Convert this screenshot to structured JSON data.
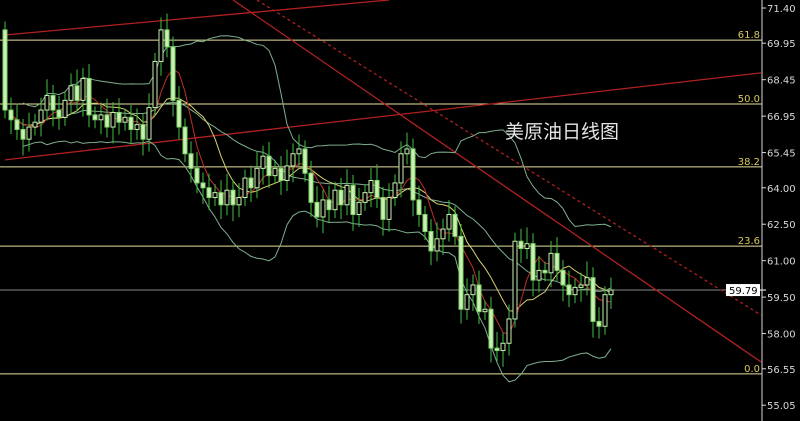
{
  "chart_data": {
    "type": "candlestick",
    "title": "美原油日线图",
    "y_ticks": [
      "71.40",
      "69.95",
      "68.45",
      "66.95",
      "65.45",
      "64.00",
      "62.50",
      "61.00",
      "59.50",
      "58.00",
      "56.55",
      "55.05"
    ],
    "ylim": [
      54.4,
      71.73
    ],
    "grid": false,
    "last_price": "59.79",
    "open": [
      70.5,
      67.2,
      66.8,
      66.4,
      66.0,
      66.5,
      66.7,
      67.2,
      67.8,
      67.2,
      66.9,
      67.6,
      68.2,
      67.6,
      68.5,
      67.0,
      66.8,
      67.0,
      66.5,
      67.1,
      66.7,
      66.9,
      66.4,
      66.6,
      66.0,
      67.3,
      69.2,
      70.5,
      69.8,
      67.6,
      66.5,
      65.4,
      64.8,
      64.2,
      64.0,
      63.6,
      63.8,
      63.3,
      63.9,
      63.3,
      63.6,
      64.4,
      64.0,
      64.8,
      65.3,
      64.5,
      64.8,
      64.3,
      64.9,
      65.4,
      65.6,
      64.6,
      63.4,
      62.8,
      63.5,
      63.1,
      63.9,
      63.3,
      64.1,
      62.9,
      63.4,
      63.8,
      64.3,
      63.6,
      62.7,
      63.6,
      64.2,
      65.4,
      65.6,
      63.5,
      62.9,
      62.2,
      61.4,
      61.9,
      62.3,
      62.9,
      62.0,
      59.0,
      59.6,
      60.0,
      58.9,
      59.0,
      57.4,
      57.3,
      57.6,
      58.6,
      61.8,
      61.5,
      61.7,
      60.2,
      60.6,
      60.5,
      61.3,
      60.6,
      60.0,
      59.6,
      59.9,
      60.0,
      60.3,
      58.5,
      58.3,
      59.6
    ],
    "close": [
      67.2,
      66.8,
      66.4,
      66.0,
      66.5,
      66.7,
      67.2,
      67.8,
      67.2,
      66.9,
      67.6,
      68.2,
      67.6,
      68.5,
      67.0,
      66.8,
      67.0,
      66.5,
      67.1,
      66.7,
      66.9,
      66.4,
      66.6,
      66.0,
      67.3,
      69.2,
      70.5,
      69.8,
      67.6,
      66.5,
      65.4,
      64.8,
      64.2,
      64.0,
      63.6,
      63.8,
      63.3,
      63.9,
      63.3,
      63.6,
      64.4,
      64.0,
      64.8,
      65.3,
      64.5,
      64.8,
      64.3,
      64.9,
      65.4,
      65.6,
      64.6,
      63.4,
      62.8,
      63.5,
      63.1,
      63.9,
      63.3,
      64.1,
      62.9,
      63.4,
      63.8,
      64.3,
      63.6,
      62.7,
      63.6,
      64.2,
      65.4,
      65.6,
      63.5,
      62.9,
      62.2,
      61.4,
      61.9,
      62.3,
      62.9,
      62.0,
      59.0,
      59.6,
      60.0,
      58.9,
      59.0,
      57.4,
      57.3,
      57.6,
      58.6,
      61.8,
      61.5,
      61.7,
      60.2,
      60.6,
      60.5,
      61.3,
      60.6,
      60.0,
      59.6,
      59.9,
      60.0,
      60.3,
      58.5,
      58.3,
      59.6,
      59.79
    ],
    "fibonacci": [
      {
        "label": "61.8",
        "price": 70.08
      },
      {
        "label": "50.0",
        "price": 67.45
      },
      {
        "label": "38.2",
        "price": 64.86
      },
      {
        "label": "23.6",
        "price": 61.6
      },
      {
        "label": "0.0",
        "price": 56.34
      }
    ],
    "trendlines": [
      {
        "from": [
          0,
          70.29
        ],
        "to": [
          64,
          71.73
        ],
        "style": "solid"
      },
      {
        "from": [
          0,
          65.15
        ],
        "to": [
          126,
          68.73
        ],
        "style": "solid"
      },
      {
        "from": [
          38,
          71.73
        ],
        "to": [
          126,
          56.83
        ],
        "style": "solid"
      },
      {
        "from": [
          42,
          71.73
        ],
        "to": [
          126,
          58.76
        ],
        "style": "dotted"
      }
    ],
    "colors": {
      "background": "#000000",
      "candle_up": "#c8f0b0",
      "candle_body_down": "#7fd46a",
      "wick": "#3fbf3f",
      "ma_fast": "#c0302a",
      "ma_slow": "#d8d070",
      "bollinger": "#7faf8f",
      "fib_line": "#e8e0a0",
      "trendline": "#b02020",
      "axis": "#d8d8d8"
    }
  }
}
